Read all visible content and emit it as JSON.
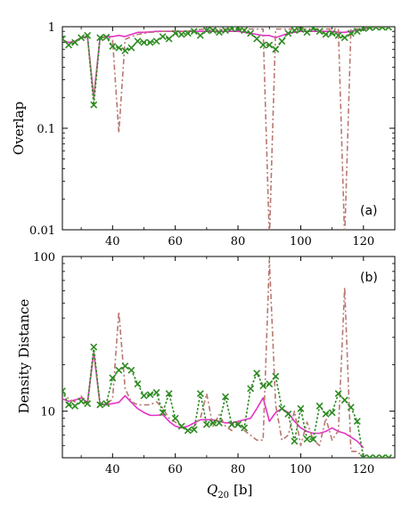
{
  "figure": {
    "xlabel_main": "Q",
    "xlabel_sub": "20",
    "xlabel_unit": "[b]"
  },
  "colors": {
    "magenta": "#e432c8",
    "green": "#2e8b22",
    "brown": "#b87870"
  },
  "chart_data": [
    {
      "type": "line",
      "panel_label": "(a)",
      "ylabel": "Overlap",
      "yscale": "log",
      "ylim": [
        0.01,
        1
      ],
      "xlim": [
        24,
        130
      ],
      "yticks": [
        0.01,
        0.1,
        1
      ],
      "ytick_labels": [
        "0.01",
        "0.1",
        "1"
      ],
      "xticks": [
        40,
        60,
        80,
        100,
        120
      ],
      "xtick_labels": [
        "40",
        "60",
        "80",
        "100",
        "120"
      ],
      "series": [
        {
          "style": "solid",
          "color": "magenta",
          "marker": "none",
          "x": [
            24,
            26,
            28,
            30,
            32,
            34,
            36,
            38,
            40,
            42,
            44,
            46,
            48,
            50,
            52,
            54,
            56,
            58,
            60,
            62,
            64,
            66,
            68,
            70,
            72,
            74,
            76,
            78,
            80,
            82,
            84,
            86,
            88,
            90,
            92,
            94,
            96,
            98,
            100,
            102,
            104,
            106,
            108,
            110,
            112,
            114,
            116,
            118,
            120,
            122,
            124,
            126,
            128
          ],
          "y": [
            0.74,
            0.7,
            0.72,
            0.78,
            0.8,
            0.2,
            0.78,
            0.8,
            0.8,
            0.82,
            0.8,
            0.84,
            0.88,
            0.88,
            0.89,
            0.9,
            0.9,
            0.9,
            0.9,
            0.9,
            0.9,
            0.9,
            0.9,
            0.9,
            0.9,
            0.9,
            0.9,
            0.9,
            0.9,
            0.88,
            0.86,
            0.84,
            0.82,
            0.82,
            0.78,
            0.82,
            0.86,
            0.88,
            0.9,
            0.9,
            0.9,
            0.9,
            0.9,
            0.9,
            0.88,
            0.88,
            0.9,
            0.92,
            0.95,
            0.98,
            0.99,
            0.99,
            0.99
          ]
        },
        {
          "style": "dashdot",
          "color": "brown",
          "marker": "none",
          "x": [
            24,
            26,
            28,
            30,
            32,
            34,
            36,
            38,
            40,
            42,
            44,
            46,
            48,
            50,
            52,
            54,
            56,
            58,
            60,
            62,
            64,
            66,
            68,
            70,
            72,
            74,
            76,
            78,
            80,
            82,
            84,
            86,
            88,
            90,
            92,
            94,
            96,
            98,
            100,
            102,
            104,
            106,
            108,
            110,
            112,
            114,
            116,
            118,
            120,
            122,
            124,
            126,
            128
          ],
          "y": [
            0.74,
            0.7,
            0.72,
            0.78,
            0.8,
            0.2,
            0.78,
            0.8,
            0.75,
            0.09,
            0.75,
            0.8,
            0.84,
            0.86,
            0.88,
            0.89,
            0.9,
            0.9,
            0.9,
            0.9,
            0.9,
            0.92,
            0.94,
            0.95,
            0.95,
            0.95,
            0.95,
            0.95,
            0.95,
            0.95,
            0.95,
            0.95,
            0.95,
            0.008,
            0.95,
            0.95,
            0.95,
            0.95,
            0.95,
            0.95,
            0.95,
            0.95,
            0.95,
            0.95,
            0.95,
            0.008,
            0.95,
            0.95,
            0.97,
            0.99,
            0.99,
            0.99,
            0.99
          ]
        },
        {
          "style": "dotted",
          "color": "green",
          "marker": "x",
          "x": [
            24,
            26,
            28,
            30,
            32,
            34,
            36,
            38,
            40,
            42,
            44,
            46,
            48,
            50,
            52,
            54,
            56,
            58,
            60,
            62,
            64,
            66,
            68,
            70,
            72,
            74,
            76,
            78,
            80,
            82,
            84,
            86,
            88,
            90,
            92,
            94,
            96,
            98,
            100,
            102,
            104,
            106,
            108,
            110,
            112,
            114,
            116,
            118,
            120,
            122,
            124,
            126,
            128
          ],
          "y": [
            0.76,
            0.66,
            0.7,
            0.78,
            0.82,
            0.17,
            0.78,
            0.79,
            0.64,
            0.62,
            0.58,
            0.62,
            0.72,
            0.7,
            0.7,
            0.72,
            0.8,
            0.76,
            0.86,
            0.84,
            0.86,
            0.9,
            0.82,
            0.92,
            0.92,
            0.88,
            0.92,
            0.96,
            0.96,
            0.92,
            0.86,
            0.76,
            0.66,
            0.66,
            0.6,
            0.72,
            0.86,
            0.92,
            0.94,
            0.88,
            0.96,
            0.9,
            0.84,
            0.86,
            0.82,
            0.78,
            0.86,
            0.9,
            0.96,
            0.98,
            0.99,
            0.99,
            0.99
          ]
        }
      ]
    },
    {
      "type": "line",
      "panel_label": "(b)",
      "ylabel": "Density Distance",
      "yscale": "log",
      "ylim": [
        5,
        100
      ],
      "xlim": [
        24,
        130
      ],
      "yticks": [
        10,
        100
      ],
      "ytick_labels": [
        "10",
        "100"
      ],
      "xticks": [
        40,
        60,
        80,
        100,
        120
      ],
      "xtick_labels": [
        "40",
        "60",
        "80",
        "100",
        "120"
      ],
      "series": [
        {
          "style": "solid",
          "color": "magenta",
          "marker": "none",
          "x": [
            24,
            26,
            28,
            30,
            32,
            34,
            36,
            38,
            40,
            42,
            44,
            46,
            48,
            50,
            52,
            54,
            56,
            58,
            60,
            62,
            64,
            66,
            68,
            70,
            72,
            74,
            76,
            78,
            80,
            82,
            84,
            86,
            88,
            90,
            92,
            94,
            96,
            98,
            100,
            102,
            104,
            106,
            108,
            110,
            112,
            114,
            116,
            118,
            120
          ],
          "y": [
            12,
            11.6,
            11.8,
            12.2,
            11.4,
            24,
            11.2,
            11.0,
            11.2,
            11.4,
            12.6,
            11.4,
            10.4,
            9.8,
            9.4,
            9.4,
            9.5,
            8.6,
            8.0,
            7.8,
            8.0,
            8.4,
            8.8,
            8.8,
            8.8,
            8.6,
            8.4,
            8.4,
            8.6,
            8.8,
            9.0,
            10.4,
            12.2,
            8.6,
            9.8,
            10.4,
            9.8,
            8.6,
            7.8,
            7.4,
            7.2,
            7.2,
            7.4,
            7.8,
            7.4,
            7.2,
            6.8,
            6.4,
            5.8
          ]
        },
        {
          "style": "dashdot",
          "color": "brown",
          "marker": "none",
          "x": [
            24,
            26,
            28,
            30,
            32,
            34,
            36,
            38,
            40,
            42,
            44,
            46,
            48,
            50,
            52,
            54,
            56,
            58,
            60,
            62,
            64,
            66,
            68,
            70,
            72,
            74,
            76,
            78,
            80,
            82,
            84,
            86,
            88,
            90,
            92,
            94,
            96,
            98,
            100,
            102,
            104,
            106,
            108,
            110,
            112,
            114,
            116,
            118,
            120,
            122,
            124,
            126,
            128
          ],
          "y": [
            13.5,
            12,
            11.5,
            12.5,
            11,
            24,
            11,
            11,
            12,
            44,
            14,
            11.5,
            11,
            11,
            11,
            11.5,
            10.5,
            9,
            8.5,
            8,
            7.5,
            8,
            9,
            13,
            8,
            9.5,
            8,
            7.5,
            8.5,
            7.5,
            7,
            6.5,
            6.5,
            95,
            11,
            6.5,
            7,
            10,
            6,
            8.5,
            6.5,
            6,
            9,
            6.5,
            7.5,
            63,
            5.5,
            5.5,
            5,
            5,
            5,
            5,
            5
          ]
        },
        {
          "style": "dotted",
          "color": "green",
          "marker": "x",
          "x": [
            24,
            26,
            28,
            30,
            32,
            34,
            36,
            38,
            40,
            42,
            44,
            46,
            48,
            50,
            52,
            54,
            56,
            58,
            60,
            62,
            64,
            66,
            68,
            70,
            72,
            74,
            76,
            78,
            80,
            82,
            84,
            86,
            88,
            90,
            92,
            94,
            96,
            98,
            100,
            102,
            104,
            106,
            108,
            110,
            112,
            114,
            116,
            118,
            120,
            122,
            124,
            126,
            128
          ],
          "y": [
            13.5,
            11.0,
            10.8,
            11.6,
            11.2,
            26,
            11.0,
            11.2,
            16.4,
            18.4,
            19.6,
            18.4,
            15.0,
            12.6,
            12.8,
            13.2,
            9.8,
            13.0,
            9.0,
            8.0,
            7.5,
            7.6,
            13.0,
            8.2,
            8.4,
            8.4,
            12.4,
            8.2,
            8.2,
            7.8,
            14.0,
            17.6,
            14.6,
            15.0,
            16.8,
            10.4,
            9.6,
            6.4,
            10.4,
            6.6,
            6.6,
            10.8,
            9.6,
            9.8,
            13.0,
            11.8,
            10.6,
            8.6,
            5.0,
            5.0,
            5.0,
            5.0,
            5.0
          ]
        }
      ]
    }
  ]
}
